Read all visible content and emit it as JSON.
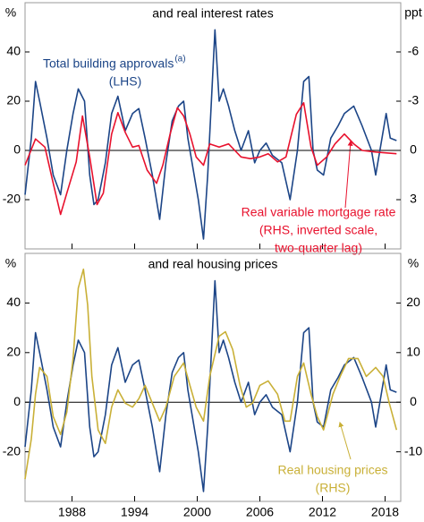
{
  "chart_data": [
    {
      "type": "line",
      "title": "and real interest rates",
      "y_unit": "%",
      "y2_unit": "ppt",
      "xlim": [
        1983.5,
        2019.5
      ],
      "ylim": [
        -40,
        60
      ],
      "yticks": [
        40,
        20,
        0,
        -20
      ],
      "y2lim": [
        -9,
        6
      ],
      "y2_inverted": true,
      "y2ticks": [
        -6,
        -3,
        0,
        3
      ],
      "series": [
        {
          "name": "Total building approvals",
          "superscript": "(a)",
          "notes": [
            "(LHS)"
          ],
          "color": "#1c4587",
          "x": [
            1983.5,
            1984.1,
            1984.5,
            1984.9,
            1985.6,
            1986.2,
            1986.9,
            1987.5,
            1988.1,
            1988.6,
            1989.2,
            1989.7,
            1990.1,
            1990.5,
            1991.2,
            1991.8,
            1992.4,
            1993.1,
            1993.8,
            1994.4,
            1995.0,
            1995.7,
            1996.4,
            1997.0,
            1997.6,
            1998.2,
            1998.7,
            1999.1,
            1999.5,
            2000.1,
            2000.6,
            2001.0,
            2001.7,
            2002.1,
            2002.5,
            2003.0,
            2003.6,
            2004.2,
            2004.9,
            2005.5,
            2006.0,
            2006.6,
            2007.2,
            2008.1,
            2008.9,
            2009.6,
            2010.2,
            2010.7,
            2011.1,
            2011.5,
            2012.1,
            2012.8,
            2013.5,
            2014.1,
            2015.0,
            2015.8,
            2016.7,
            2017.1,
            2017.5,
            2018.1,
            2018.5,
            2019.1
          ],
          "values": [
            -18,
            5,
            28,
            20,
            5,
            -10,
            -18,
            0,
            15,
            25,
            20,
            -10,
            -22,
            -20,
            -5,
            15,
            22,
            8,
            15,
            17,
            5,
            -10,
            -28,
            -5,
            12,
            18,
            20,
            5,
            -5,
            -20,
            -36,
            -10,
            49,
            20,
            25,
            18,
            8,
            0,
            8,
            -5,
            0,
            3,
            -2,
            -5,
            -20,
            0,
            28,
            30,
            0,
            -8,
            -10,
            5,
            10,
            15,
            18,
            10,
            0,
            -10,
            0,
            15,
            5,
            4
          ]
        },
        {
          "name": "Real variable mortgage rate",
          "notes": [
            "(RHS, inverted scale,",
            "two-quarter lag)"
          ],
          "color": "#e8112d",
          "axis": "y2",
          "x": [
            1983.5,
            1984.5,
            1985.4,
            1986.2,
            1986.9,
            1987.5,
            1988.4,
            1989.0,
            1989.7,
            1990.4,
            1991.0,
            1991.8,
            1992.4,
            1993.1,
            1993.8,
            1994.4,
            1995.2,
            1996.1,
            1996.7,
            1997.4,
            1998.1,
            1998.7,
            1999.3,
            1999.9,
            2000.6,
            2001.2,
            2002.1,
            2003.0,
            2003.6,
            2004.2,
            2005.1,
            2006.0,
            2006.8,
            2007.7,
            2008.5,
            2009.5,
            2010.2,
            2010.9,
            2011.5,
            2012.4,
            2013.2,
            2014.1,
            2015.0,
            2015.8,
            2017.1,
            2019.1
          ],
          "values": [
            0.9,
            -0.7,
            -0.2,
            2,
            3.9,
            2.6,
            0.7,
            -2.1,
            0.4,
            3.3,
            2.6,
            -1,
            -2.3,
            -1.1,
            -0.2,
            -0.3,
            1.2,
            2,
            0.9,
            -1,
            -2.6,
            -2.1,
            -1,
            0.4,
            0.9,
            -0.4,
            -0.2,
            -0.4,
            0,
            0.4,
            0.5,
            0.4,
            0.2,
            0.7,
            0.4,
            -2.2,
            -2.9,
            -0.2,
            0.9,
            0.4,
            -0.4,
            -1,
            -0.4,
            0,
            0.1,
            0.2
          ]
        }
      ]
    },
    {
      "type": "line",
      "title": "and real housing prices",
      "y_unit": "%",
      "y2_unit": "%",
      "xlim": [
        1983.5,
        2019.5
      ],
      "xticks": [
        1988,
        1994,
        2000,
        2006,
        2012,
        2018
      ],
      "ylim": [
        -40,
        60
      ],
      "yticks": [
        40,
        20,
        0,
        -20
      ],
      "y2lim": [
        -20,
        30
      ],
      "y2ticks": [
        20,
        10,
        0,
        -10
      ],
      "series": [
        {
          "color": "#1c4587",
          "x": [
            1983.5,
            1984.1,
            1984.5,
            1984.9,
            1985.6,
            1986.2,
            1986.9,
            1987.5,
            1988.1,
            1988.6,
            1989.2,
            1989.7,
            1990.1,
            1990.5,
            1991.2,
            1991.8,
            1992.4,
            1993.1,
            1993.8,
            1994.4,
            1995.0,
            1995.7,
            1996.4,
            1997.0,
            1997.6,
            1998.2,
            1998.7,
            1999.1,
            1999.5,
            2000.1,
            2000.6,
            2001.0,
            2001.7,
            2002.1,
            2002.5,
            2003.0,
            2003.6,
            2004.2,
            2004.9,
            2005.5,
            2006.0,
            2006.6,
            2007.2,
            2008.1,
            2008.9,
            2009.6,
            2010.2,
            2010.7,
            2011.1,
            2011.5,
            2012.1,
            2012.8,
            2013.5,
            2014.1,
            2015.0,
            2015.8,
            2016.7,
            2017.1,
            2017.5,
            2018.1,
            2018.5,
            2019.1
          ],
          "values": [
            -18,
            5,
            28,
            20,
            5,
            -10,
            -18,
            0,
            15,
            25,
            20,
            -10,
            -22,
            -20,
            -5,
            15,
            22,
            8,
            15,
            17,
            5,
            -10,
            -28,
            -5,
            12,
            18,
            20,
            5,
            -5,
            -20,
            -36,
            -10,
            49,
            20,
            25,
            18,
            8,
            0,
            8,
            -5,
            0,
            3,
            -2,
            -5,
            -20,
            0,
            28,
            30,
            0,
            -8,
            -10,
            5,
            10,
            15,
            18,
            10,
            0,
            -10,
            0,
            15,
            5,
            4
          ]
        },
        {
          "name": "Real housing prices",
          "notes": [
            "(RHS)"
          ],
          "color": "#c9b037",
          "axis": "y2",
          "x": [
            1983.5,
            1984.1,
            1984.5,
            1984.9,
            1985.6,
            1986.2,
            1986.9,
            1987.5,
            1988.1,
            1988.6,
            1989.1,
            1989.5,
            1989.9,
            1990.5,
            1991.2,
            1991.8,
            1992.4,
            1993.1,
            1993.8,
            1994.4,
            1995.0,
            1995.7,
            1996.4,
            1997.0,
            1997.8,
            1998.7,
            1999.3,
            1999.9,
            2000.6,
            2001.2,
            2002.1,
            2002.7,
            2003.4,
            2004.1,
            2004.7,
            2005.3,
            2006.0,
            2006.8,
            2007.7,
            2008.4,
            2008.9,
            2009.6,
            2010.2,
            2010.9,
            2011.5,
            2012.1,
            2013.0,
            2013.7,
            2014.5,
            2015.4,
            2016.2,
            2017.1,
            2017.8,
            2018.4,
            2019.1
          ],
          "values": [
            -15.5,
            -7.4,
            1.6,
            7,
            5.2,
            -2.9,
            -6.5,
            -2,
            8.8,
            23,
            26.8,
            19.6,
            5.2,
            -5.6,
            -8.3,
            -1,
            2.5,
            -0.2,
            -1,
            0.7,
            3.4,
            -0.2,
            -3.8,
            -1,
            5.2,
            7.9,
            3.4,
            -1,
            -3.8,
            5.2,
            13.3,
            14.2,
            10.6,
            3.4,
            -1,
            -0.2,
            3.4,
            4.3,
            1.6,
            -3.8,
            -3.8,
            5.2,
            7.9,
            1.6,
            -2.9,
            -5.6,
            1.6,
            5.2,
            8.8,
            8.8,
            5.2,
            7,
            5.2,
            -0.2,
            -5.6
          ]
        }
      ]
    }
  ]
}
